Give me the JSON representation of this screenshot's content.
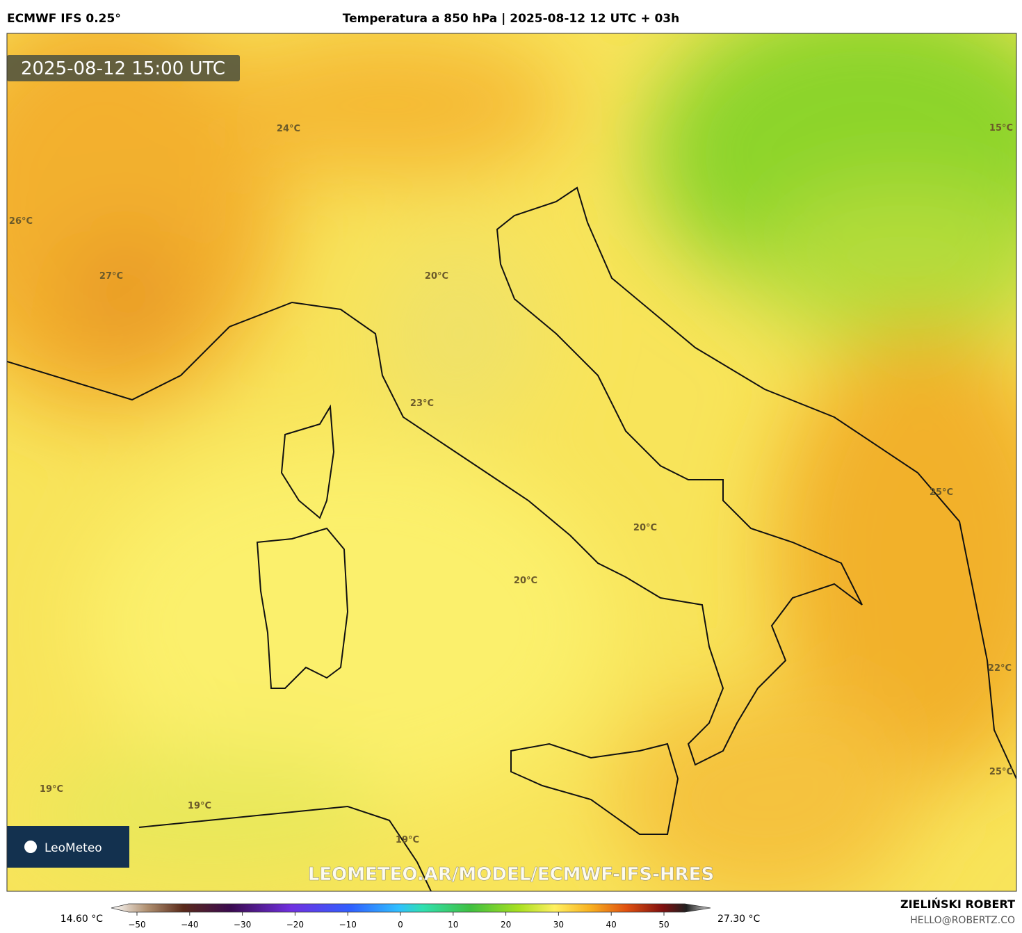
{
  "header": {
    "model": "ECMWF IFS 0.25°",
    "title": "Temperatura a 850 hPa | 2025-08-12 12 UTC + 03h"
  },
  "map": {
    "valid_time": "2025-08-12 15:00 UTC",
    "labels": [
      "24°C",
      "26°C",
      "27°C",
      "20°C",
      "23°C",
      "20°C",
      "20°C",
      "25°C",
      "22°C",
      "25°C",
      "15°C",
      "19°C",
      "19°C",
      "19°C"
    ],
    "watermark": "LEOMETEO.AR/MODEL/ECMWF-IFS-HRES",
    "logo": "LeoMeteo"
  },
  "colorbar": {
    "min_label": "14.60 °C",
    "max_label": "27.30 °C",
    "ticks": [
      {
        "value": -50,
        "label": "−50"
      },
      {
        "value": -40,
        "label": "−40"
      },
      {
        "value": -30,
        "label": "−30"
      },
      {
        "value": -20,
        "label": "−20"
      },
      {
        "value": -10,
        "label": "−10"
      },
      0,
      10,
      20,
      30,
      40,
      50
    ]
  },
  "footer": {
    "author": "ZIELIŃSKI ROBERT",
    "email": "HELLO@ROBERTZ.CO"
  }
}
